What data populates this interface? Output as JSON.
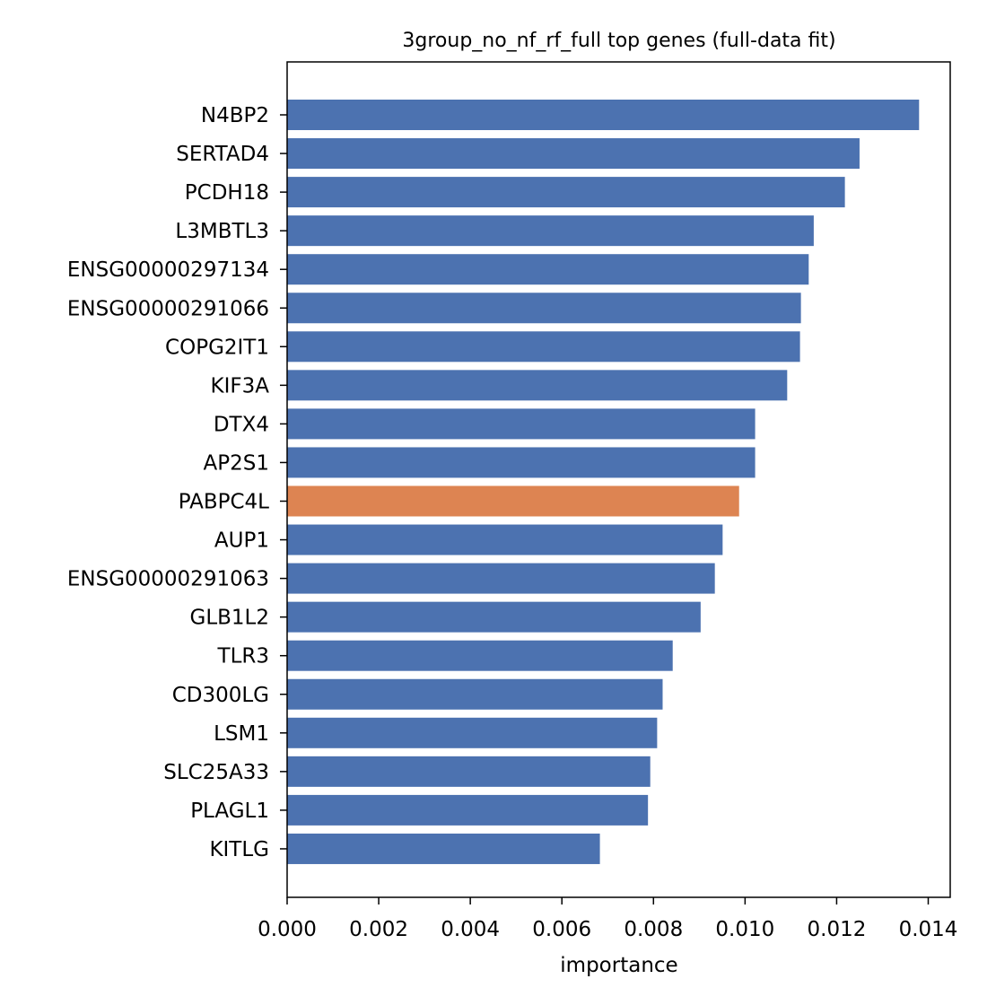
{
  "chart_data": {
    "type": "bar",
    "orientation": "horizontal",
    "title": "3group_no_nf_rf_full top genes (full-data fit)",
    "xlabel": "importance",
    "ylabel": "",
    "xlim": [
      0,
      0.01448
    ],
    "xticks": [
      0.0,
      0.002,
      0.004,
      0.006,
      0.008,
      0.01,
      0.012,
      0.014
    ],
    "xtick_labels": [
      "0.000",
      "0.002",
      "0.004",
      "0.006",
      "0.008",
      "0.010",
      "0.012",
      "0.014"
    ],
    "grid": false,
    "legend": "none",
    "default_color": "#4c72b0",
    "highlight_color": "#dd8452",
    "categories": [
      "N4BP2",
      "SERTAD4",
      "PCDH18",
      "L3MBTL3",
      "ENSG00000297134",
      "ENSG00000291066",
      "COPG2IT1",
      "KIF3A",
      "DTX4",
      "AP2S1",
      "PABPC4L",
      "AUP1",
      "ENSG00000291063",
      "GLB1L2",
      "TLR3",
      "CD300LG",
      "LSM1",
      "SLC25A33",
      "PLAGL1",
      "KITLG"
    ],
    "values": [
      0.0138,
      0.0125,
      0.01218,
      0.0115,
      0.01139,
      0.01122,
      0.0112,
      0.01092,
      0.01022,
      0.01022,
      0.00987,
      0.00951,
      0.00934,
      0.00903,
      0.00842,
      0.0082,
      0.00808,
      0.00793,
      0.00788,
      0.00683
    ],
    "highlighted": [
      "PABPC4L"
    ]
  }
}
